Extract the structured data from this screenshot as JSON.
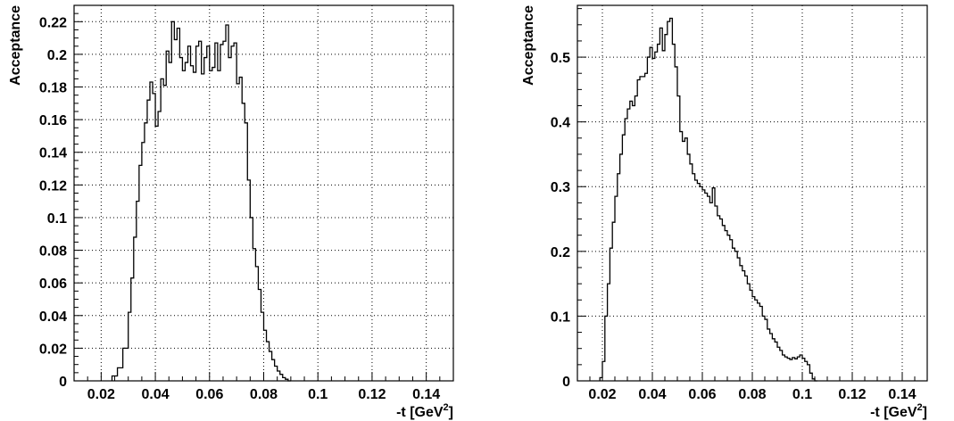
{
  "chart_data": [
    {
      "type": "line",
      "step": true,
      "xlabel": "-t [GeV",
      "xlabel_superscript": "2",
      "xlabel_suffix": "]",
      "ylabel": "Acceptance",
      "xlim": [
        0.01,
        0.15
      ],
      "ylim": [
        0,
        0.23
      ],
      "grid": true,
      "xticks": [
        0.02,
        0.04,
        0.06,
        0.08,
        0.1,
        0.12,
        0.14
      ],
      "xtick_labels": [
        "0.02",
        "0.04",
        "0.06",
        "0.08",
        "0.1",
        "0.12",
        "0.14"
      ],
      "yticks": [
        0,
        0.02,
        0.04,
        0.06,
        0.08,
        0.1,
        0.12,
        0.14,
        0.16,
        0.18,
        0.2,
        0.22
      ],
      "ytick_labels": [
        "0",
        "0.02",
        "0.04",
        "0.06",
        "0.08",
        "0.1",
        "0.12",
        "0.14",
        "0.16",
        "0.18",
        "0.2",
        "0.22"
      ],
      "bin_edges": [
        0.024,
        0.026,
        0.028,
        0.03,
        0.031,
        0.032,
        0.033,
        0.034,
        0.035,
        0.036,
        0.037,
        0.038,
        0.039,
        0.04,
        0.041,
        0.042,
        0.043,
        0.044,
        0.045,
        0.046,
        0.047,
        0.048,
        0.049,
        0.05,
        0.051,
        0.052,
        0.053,
        0.054,
        0.055,
        0.056,
        0.057,
        0.058,
        0.059,
        0.06,
        0.061,
        0.062,
        0.063,
        0.064,
        0.065,
        0.066,
        0.067,
        0.068,
        0.069,
        0.07,
        0.071,
        0.072,
        0.073,
        0.074,
        0.075,
        0.076,
        0.077,
        0.078,
        0.079,
        0.08,
        0.081,
        0.082,
        0.083,
        0.084,
        0.085,
        0.086,
        0.087,
        0.088,
        0.089,
        0.09
      ],
      "values": [
        0.003,
        0.008,
        0.02,
        0.042,
        0.063,
        0.088,
        0.11,
        0.132,
        0.146,
        0.158,
        0.172,
        0.183,
        0.176,
        0.156,
        0.165,
        0.185,
        0.181,
        0.202,
        0.195,
        0.22,
        0.209,
        0.216,
        0.198,
        0.19,
        0.195,
        0.205,
        0.193,
        0.189,
        0.205,
        0.208,
        0.188,
        0.198,
        0.205,
        0.19,
        0.192,
        0.207,
        0.19,
        0.206,
        0.208,
        0.218,
        0.198,
        0.205,
        0.207,
        0.182,
        0.186,
        0.17,
        0.158,
        0.123,
        0.1,
        0.081,
        0.07,
        0.056,
        0.042,
        0.031,
        0.024,
        0.018,
        0.013,
        0.009,
        0.006,
        0.004,
        0.002,
        0.001,
        0.0
      ]
    },
    {
      "type": "line",
      "step": true,
      "xlabel": "-t [GeV",
      "xlabel_superscript": "2",
      "xlabel_suffix": "]",
      "ylabel": "Acceptance",
      "xlim": [
        0.01,
        0.15
      ],
      "ylim": [
        0,
        0.58
      ],
      "grid": true,
      "xticks": [
        0.02,
        0.04,
        0.06,
        0.08,
        0.1,
        0.12,
        0.14
      ],
      "xtick_labels": [
        "0.02",
        "0.04",
        "0.06",
        "0.08",
        "0.1",
        "0.12",
        "0.14"
      ],
      "yticks": [
        0,
        0.1,
        0.2,
        0.3,
        0.4,
        0.5
      ],
      "ytick_labels": [
        "0",
        "0.1",
        "0.2",
        "0.3",
        "0.4",
        "0.5"
      ],
      "bin_start": 0.019,
      "bin_width": 0.001,
      "values": [
        0.005,
        0.03,
        0.1,
        0.15,
        0.205,
        0.245,
        0.285,
        0.32,
        0.35,
        0.38,
        0.405,
        0.42,
        0.432,
        0.425,
        0.44,
        0.465,
        0.47,
        0.47,
        0.475,
        0.5,
        0.515,
        0.498,
        0.508,
        0.52,
        0.545,
        0.51,
        0.535,
        0.555,
        0.56,
        0.52,
        0.485,
        0.44,
        0.385,
        0.37,
        0.375,
        0.35,
        0.335,
        0.32,
        0.31,
        0.305,
        0.3,
        0.295,
        0.29,
        0.285,
        0.275,
        0.298,
        0.27,
        0.255,
        0.25,
        0.24,
        0.232,
        0.225,
        0.218,
        0.205,
        0.2,
        0.19,
        0.178,
        0.17,
        0.162,
        0.15,
        0.14,
        0.13,
        0.125,
        0.12,
        0.115,
        0.1,
        0.095,
        0.08,
        0.073,
        0.065,
        0.06,
        0.052,
        0.047,
        0.04,
        0.037,
        0.035,
        0.033,
        0.036,
        0.034,
        0.037,
        0.04,
        0.035,
        0.03,
        0.025,
        0.012,
        0.003,
        0.0
      ]
    }
  ]
}
